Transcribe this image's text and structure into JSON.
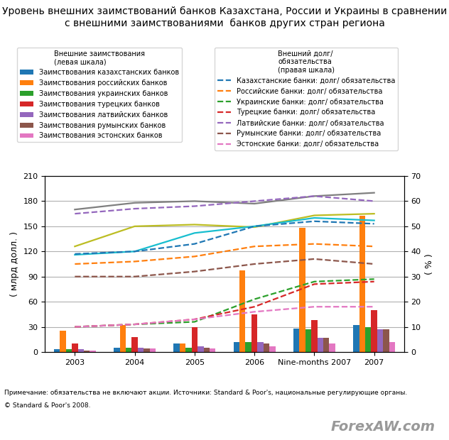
{
  "chart_data": {
    "type": "bar",
    "title": "Уровень внешних заимствований банков Казахстана, России и Украины в сравнении с внешними заимствованиями  банков других стран региона",
    "categories": [
      "2003",
      "2004",
      "2005",
      "2006",
      "Nine-months 2007",
      "2007"
    ],
    "y_label": "( млрд долл. )",
    "y2_label": "( % )",
    "ylim": [
      0,
      210
    ],
    "yticks": [
      0,
      30,
      60,
      90,
      120,
      150,
      180,
      210
    ],
    "y2lim": [
      0,
      70
    ],
    "y2ticks": [
      0,
      10,
      20,
      30,
      40,
      50,
      60,
      70
    ],
    "grid": "y",
    "legend": "upper left",
    "legend_titles": [
      [
        "Внешние заимствования",
        "(левая шкала)"
      ],
      [
        "Внешний долг/",
        "обязательства",
        "(правая шкала)"
      ]
    ],
    "notes": [
      "Примечание: обязательства не включают акции. Источники: Standard & Poor's, национальные регулирующие органы.",
      "© Standard & Poor's 2008."
    ],
    "watermark": "ForexAW.com",
    "series": [
      {
        "name": "Заимствования казахстанских банков",
        "type": "bar",
        "color": "#1f77b4",
        "values": [
          3,
          5,
          10,
          12,
          28,
          32
        ]
      },
      {
        "name": "Заимствования российских банков",
        "type": "bar",
        "color": "#ff7f0e",
        "values": [
          25,
          32,
          10,
          97,
          148,
          163
        ]
      },
      {
        "name": "Заимствования украинских банков",
        "type": "bar",
        "color": "#2ca02c",
        "values": [
          3,
          5,
          5,
          12,
          27,
          30
        ]
      },
      {
        "name": "Заимствования турецких банков",
        "type": "bar",
        "color": "#d62728",
        "values": [
          10,
          18,
          30,
          45,
          38,
          50
        ]
      },
      {
        "name": "Заимствования латвийских банков",
        "type": "bar",
        "color": "#9467bd",
        "values": [
          3,
          5,
          7,
          12,
          17,
          27
        ]
      },
      {
        "name": "Заимствования румынских банков",
        "type": "bar",
        "color": "#8c564b",
        "values": [
          2,
          4,
          5,
          10,
          17,
          27
        ]
      },
      {
        "name": "Заимствования эстонских банков",
        "type": "bar",
        "color": "#e377c2",
        "values": [
          2,
          4,
          4,
          7,
          10,
          12
        ]
      },
      {
        "type": "line",
        "color": "#7f7f7f",
        "line_style": "solid",
        "values": [
          170,
          178,
          180,
          177,
          186,
          190
        ]
      },
      {
        "type": "line",
        "color": "#bcbd22",
        "line_style": "solid",
        "values": [
          126,
          150,
          152,
          149,
          163,
          165
        ]
      },
      {
        "type": "line",
        "color": "#17becf",
        "line_style": "solid",
        "values": [
          116,
          120,
          142,
          150,
          160,
          157
        ]
      },
      {
        "name": "Казахстанские банки: долг/ обязательства",
        "type": "line",
        "axis": "y2",
        "color": "#1f77b4",
        "line_style": "dashed",
        "values": [
          39,
          40,
          43,
          50,
          52,
          51
        ]
      },
      {
        "name": "Российские банки: долг/ обязательства",
        "type": "line",
        "axis": "y2",
        "color": "#ff7f0e",
        "line_style": "dashed",
        "values": [
          35,
          36,
          38,
          42,
          43,
          42
        ]
      },
      {
        "name": "Украинские банки: долг/ обязательства",
        "type": "line",
        "axis": "y2",
        "color": "#2ca02c",
        "line_style": "dashed",
        "values": [
          10,
          11,
          12,
          21,
          28,
          29
        ]
      },
      {
        "name": "Турецкие банки: долг/ обязательства",
        "type": "line",
        "axis": "y2",
        "color": "#d62728",
        "line_style": "dashed",
        "values": [
          10,
          11,
          13,
          18,
          27,
          28
        ]
      },
      {
        "name": "Латвийские банки: долг/ обязательства",
        "type": "line",
        "axis": "y2",
        "color": "#9467bd",
        "line_style": "dashed",
        "values": [
          55,
          57,
          58,
          60,
          62,
          60
        ]
      },
      {
        "name": "Румынские банки: долг/ обязательства",
        "type": "line",
        "axis": "y2",
        "color": "#8c564b",
        "line_style": "dashed",
        "values": [
          30,
          30,
          32,
          35,
          37,
          35
        ]
      },
      {
        "name": "Эстонские банки: долг/ обязательства",
        "type": "line",
        "axis": "y2",
        "color": "#e377c2",
        "line_style": "dashed",
        "values": [
          10,
          11,
          13,
          16,
          18,
          18
        ]
      }
    ]
  }
}
